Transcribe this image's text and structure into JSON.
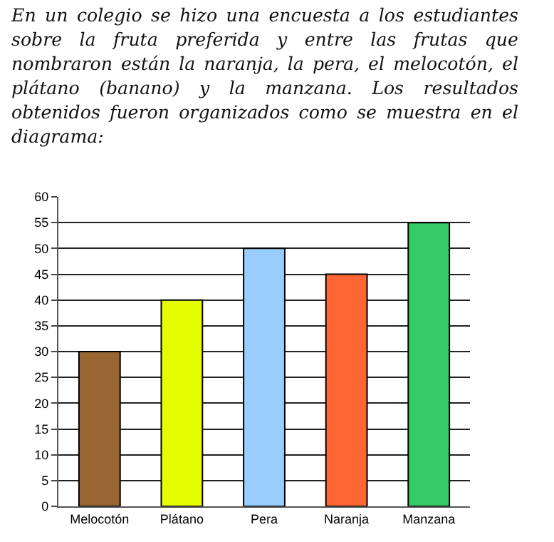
{
  "chart_data": {
    "type": "bar",
    "title": "En un colegio se hizo una encuesta a los estudiantes sobre la fruta preferida y entre las frutas que nombraron están la naranja, la pera, el melocotón, el plátano (banano) y la manzana. Los resultados obtenidos fueron organizados como se muestra en el diagrama:",
    "categories": [
      "Melocotón",
      "Plátano",
      "Pera",
      "Naranja",
      "Manzana"
    ],
    "values": [
      30,
      40,
      50,
      45,
      55
    ],
    "colors": [
      "#996633",
      "#e6ff00",
      "#99ccff",
      "#ff6633",
      "#33cc66"
    ],
    "ylim": [
      0,
      60
    ],
    "yticks": [
      0,
      5,
      10,
      15,
      20,
      25,
      30,
      35,
      40,
      45,
      50,
      55,
      60
    ],
    "grid": "y",
    "legend": false
  }
}
